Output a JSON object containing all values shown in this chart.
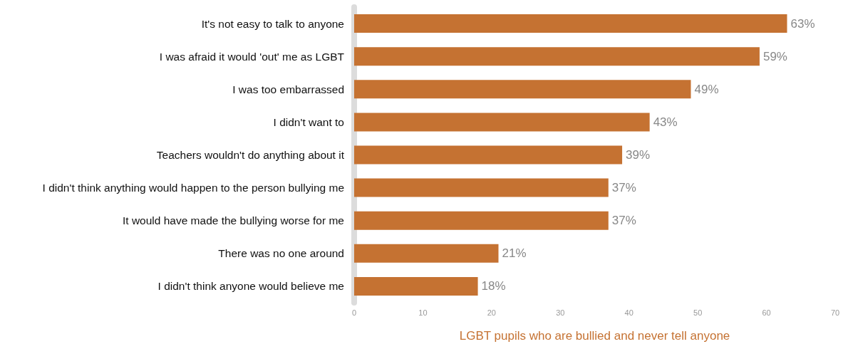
{
  "chart_data": {
    "type": "bar",
    "orientation": "horizontal",
    "xlabel": "LGBT pupils who are bullied and never tell anyone",
    "categories": [
      "It's not easy to talk to anyone",
      "I was afraid it would 'out' me as LGBT",
      "I was too embarrassed",
      "I didn't want to",
      "Teachers wouldn't do anything about it",
      "I didn't think anything would happen to the person bullying me",
      "It would have made the bullying worse for me",
      "There was no one around",
      "I didn't think anyone would believe me"
    ],
    "values": [
      63,
      59,
      49,
      43,
      39,
      37,
      37,
      21,
      18
    ],
    "value_labels": [
      "63%",
      "59%",
      "49%",
      "43%",
      "39%",
      "37%",
      "37%",
      "21%",
      "18%"
    ],
    "color": "#c57232",
    "xlim": [
      0,
      70
    ],
    "xticks": [
      0,
      10,
      20,
      30,
      40,
      50,
      60,
      70
    ]
  }
}
